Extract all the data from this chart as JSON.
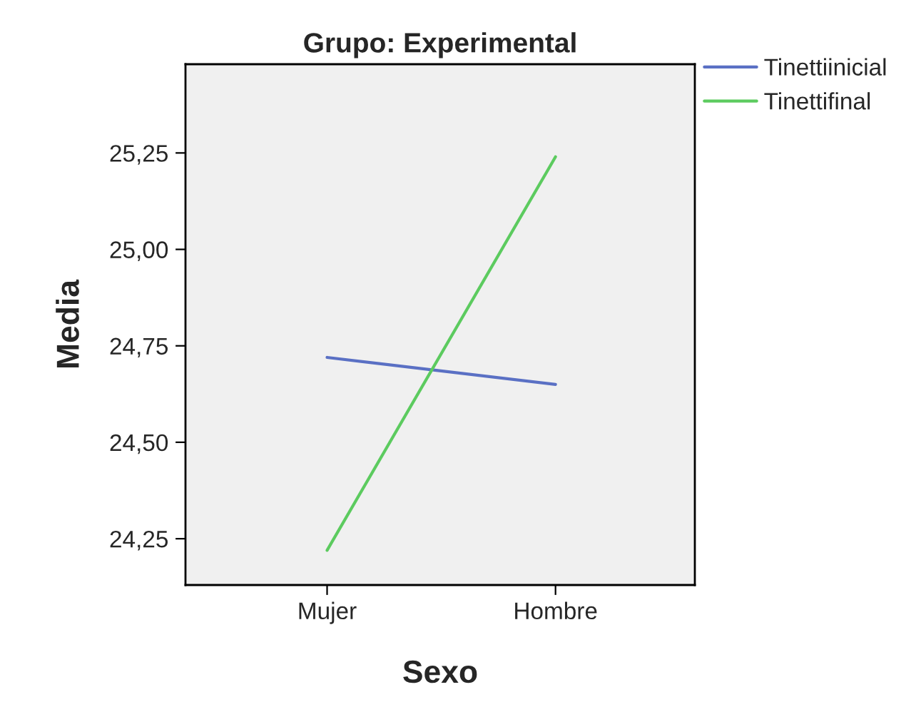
{
  "chart_data": {
    "type": "line",
    "title": "Grupo: Experimental",
    "xlabel": "Sexo",
    "ylabel": "Media",
    "categories": [
      "Mujer",
      "Hombre"
    ],
    "series": [
      {
        "name": "Tinettiinicial",
        "color": "#5a70c4",
        "values": [
          24.72,
          24.65
        ]
      },
      {
        "name": "Tinettifinal",
        "color": "#5ccb5f",
        "values": [
          24.22,
          25.24
        ]
      }
    ],
    "ylim": [
      24.13,
      25.48
    ],
    "yticks": [
      {
        "value": 24.25,
        "label": "24,25"
      },
      {
        "value": 24.5,
        "label": "24,50"
      },
      {
        "value": 24.75,
        "label": "24,75"
      },
      {
        "value": 25.0,
        "label": "25,00"
      },
      {
        "value": 25.25,
        "label": "25,25"
      }
    ],
    "grid": false,
    "legend": "top right",
    "marker": "none",
    "line_style": "solid"
  }
}
